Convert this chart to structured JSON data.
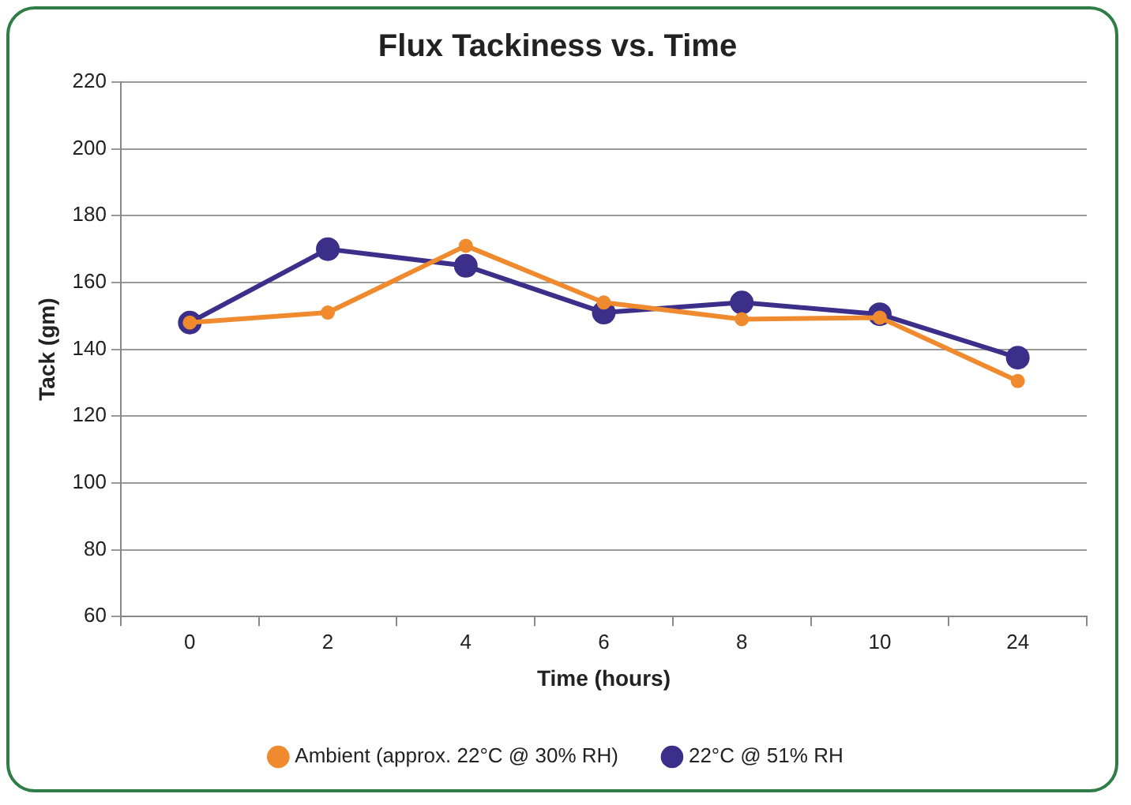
{
  "chart_data": {
    "type": "line",
    "title": "Flux Tackiness vs. Time",
    "xlabel": "Time (hours)",
    "ylabel": "Tack (gm)",
    "categories": [
      "0",
      "2",
      "4",
      "6",
      "8",
      "10",
      "24"
    ],
    "series": [
      {
        "name": "Ambient (approx. 22°C @ 30% RH)",
        "color": "#f08a2e",
        "values": [
          148,
          151,
          171,
          154,
          149,
          149.5,
          130.5
        ]
      },
      {
        "name": "22°C @ 51% RH",
        "color": "#3b2f8a",
        "values": [
          148,
          170,
          165,
          151,
          154,
          150.5,
          137.5
        ]
      }
    ],
    "ylim": [
      60,
      220
    ],
    "yticks": [
      60,
      80,
      100,
      120,
      140,
      160,
      180,
      200,
      220
    ],
    "grid": "y",
    "legend": "bottom",
    "marker": "circle",
    "line_style": "solid"
  }
}
